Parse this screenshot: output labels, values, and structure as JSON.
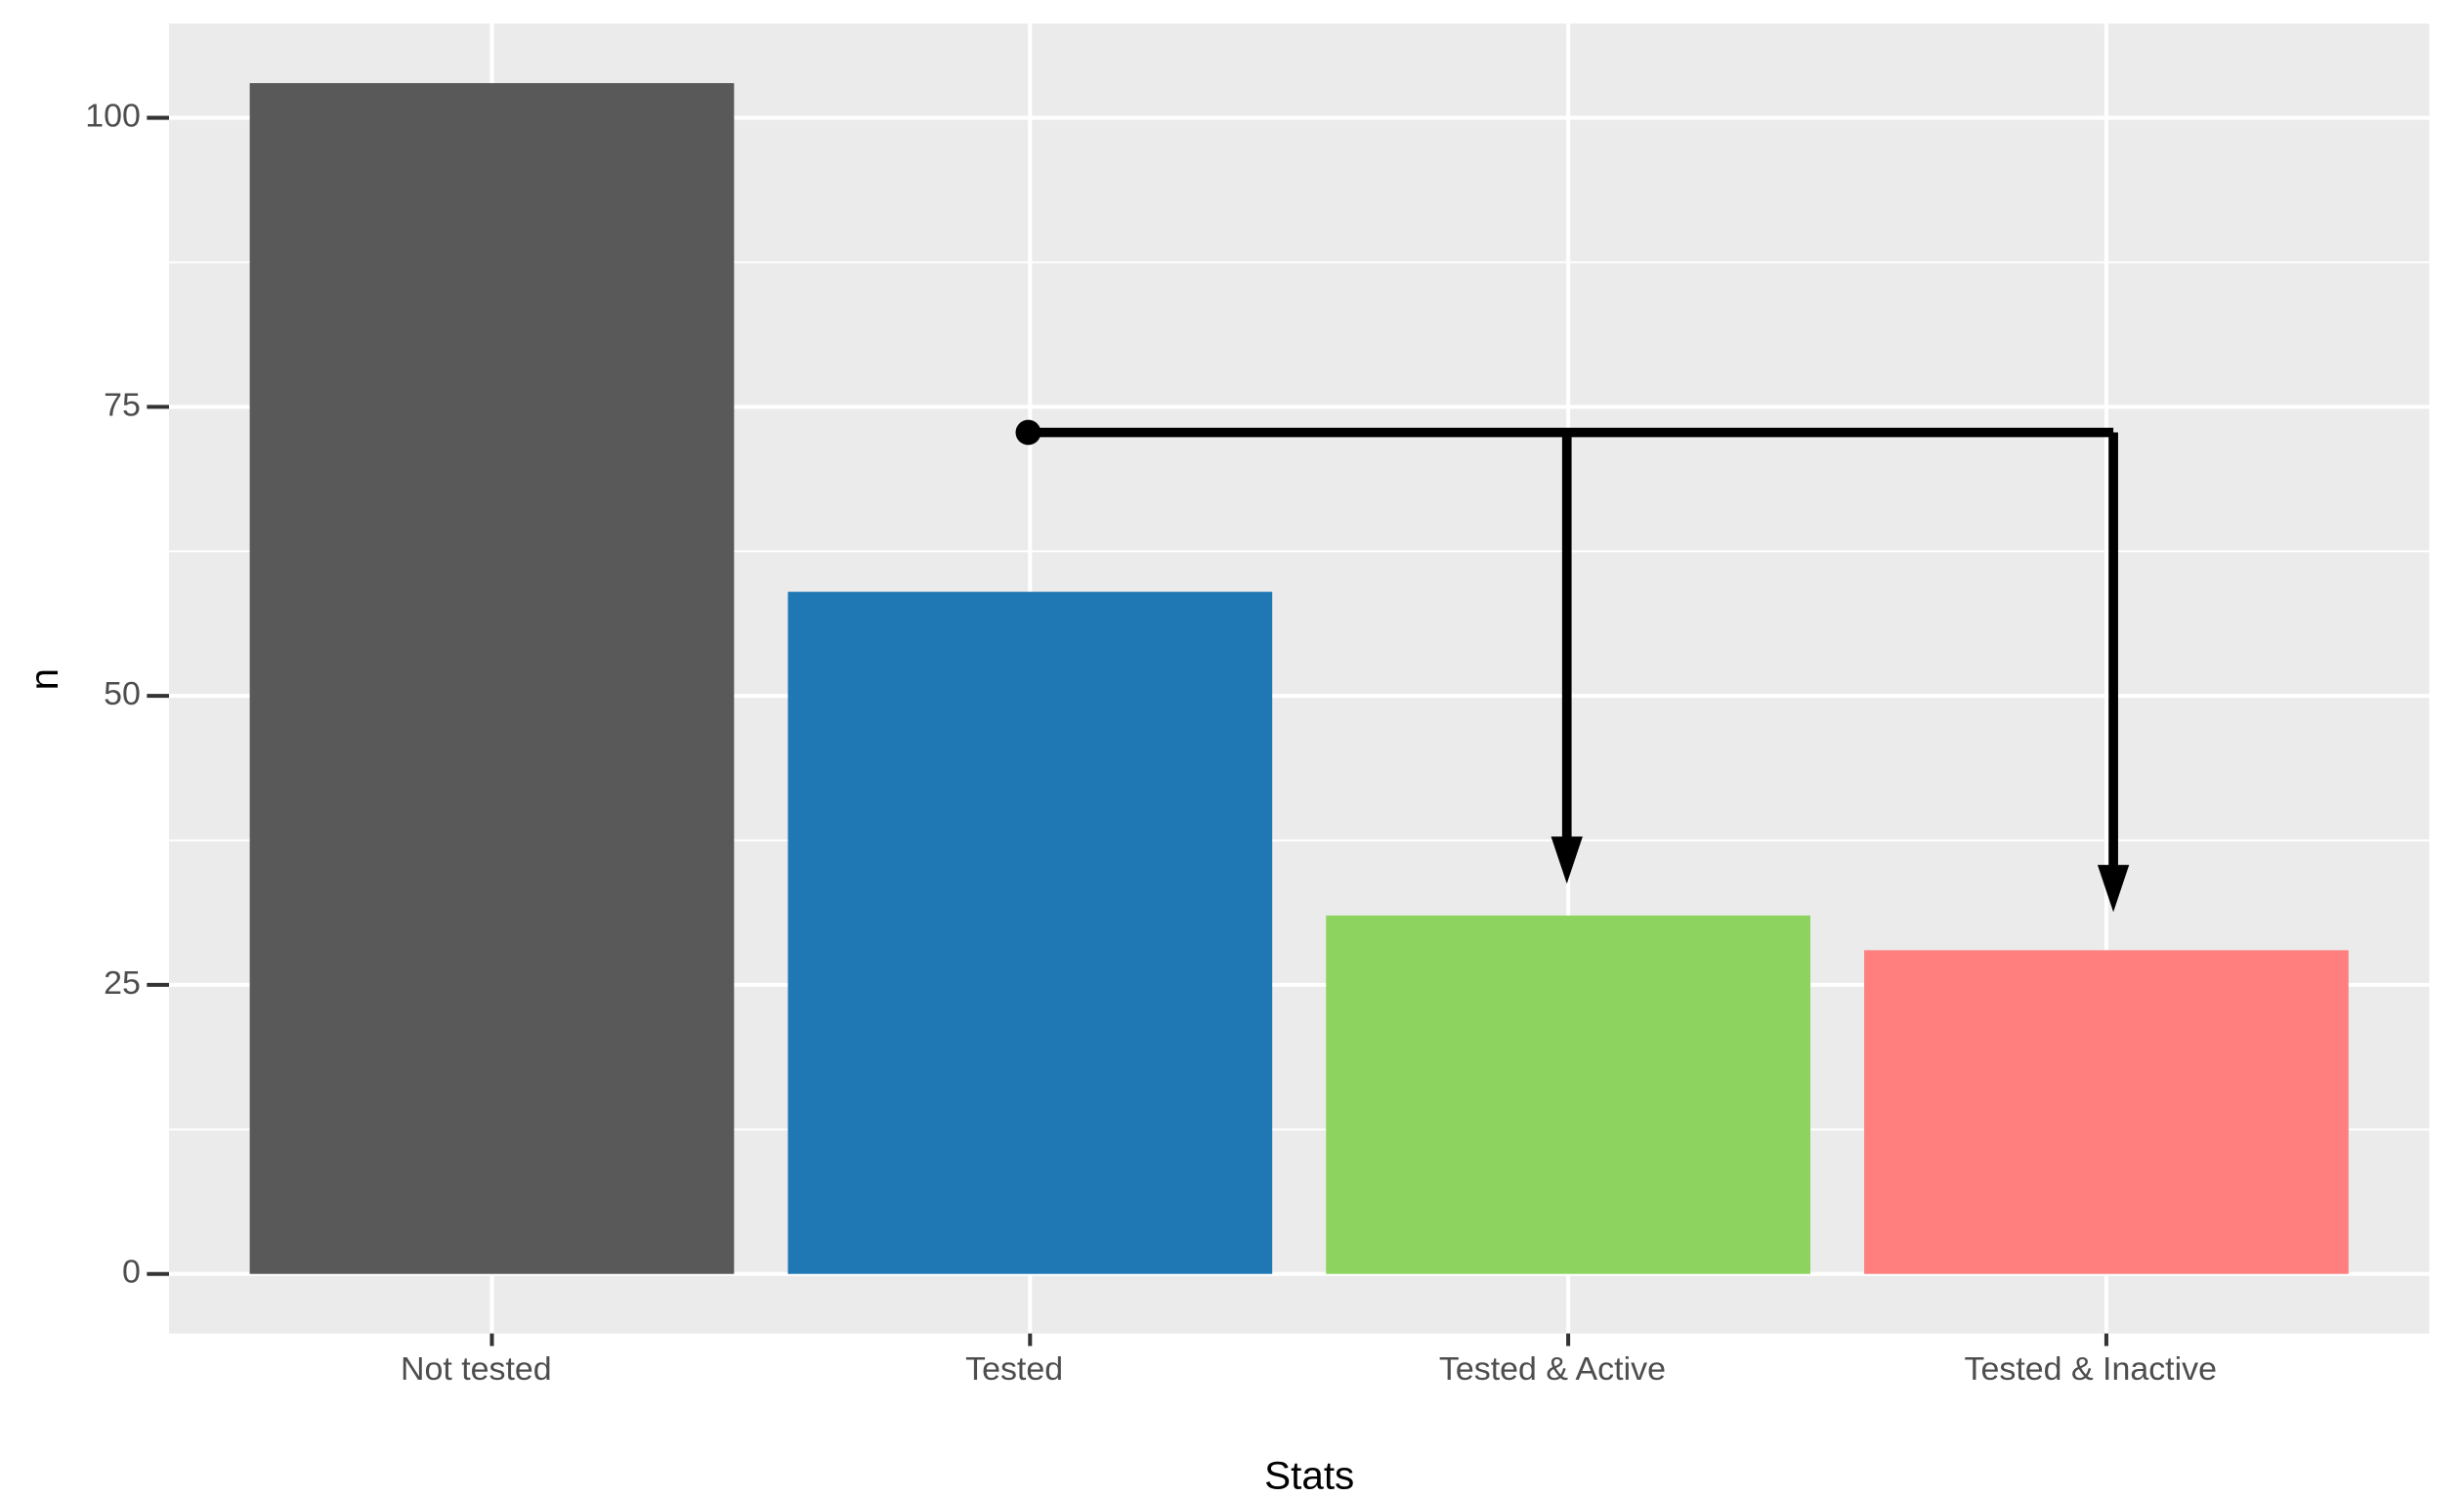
{
  "chart_data": {
    "type": "bar",
    "categories": [
      "Not tested",
      "Tested",
      "Tested & Active",
      "Tested & Inactive"
    ],
    "values": [
      103,
      59,
      31,
      28
    ],
    "colors": [
      "#595959",
      "#1f78b4",
      "#8dd35f",
      "#ff7f7f"
    ],
    "x_label": "Stats",
    "y_label": "n",
    "ylim": [
      -5.15,
      108.15
    ],
    "yticks": [
      0,
      25,
      50,
      75,
      100
    ],
    "grid": true
  }
}
